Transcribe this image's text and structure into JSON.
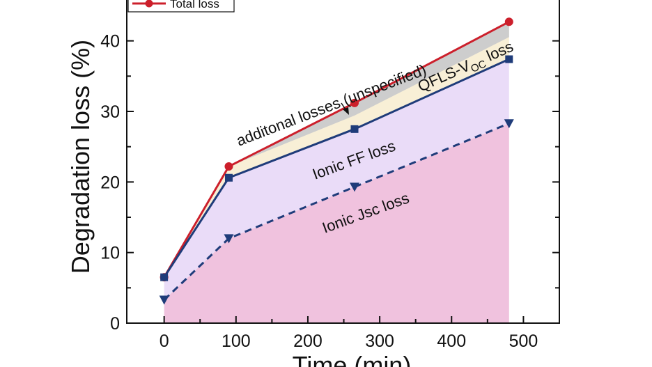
{
  "chart_data": {
    "type": "area",
    "xlabel": "Time (min)",
    "ylabel": "Degradation loss (%)",
    "xlim": [
      -52,
      550
    ],
    "ylim": [
      0,
      45
    ],
    "xticks": [
      0,
      100,
      200,
      300,
      400,
      500
    ],
    "yticks": [
      0,
      10,
      20,
      30,
      40
    ],
    "x": [
      0,
      90,
      265,
      480
    ],
    "series": [
      {
        "name": "Total loss",
        "values": [
          6.5,
          22.2,
          31.2,
          42.7
        ],
        "color": "#cc1f2b",
        "marker": "circle",
        "line": "solid"
      },
      {
        "name": "",
        "values": [
          6.5,
          20.6,
          27.5,
          37.4
        ],
        "color": "#1f3c7a",
        "marker": "square",
        "line": "solid"
      },
      {
        "name": "",
        "values": [
          3.3,
          12.0,
          19.3,
          28.3
        ],
        "color": "#1f3c7a",
        "marker": "triangle-down",
        "line": "dashed"
      }
    ],
    "fill_colors": {
      "jsc": "#f0c2de",
      "ff": "#eadcf8",
      "voc": "#f8efd6",
      "additional": "#cdcdcd"
    },
    "annotations": {
      "additional": "additonal losses (unspecified)",
      "qfls_prefix": "QFLS-V",
      "qfls_sub": "OC",
      "qfls_suffix": " loss",
      "ff": "Ionic FF loss",
      "jsc": "Ionic Jsc loss"
    },
    "legend": {
      "label": "Total loss",
      "placement": "top-left"
    }
  }
}
